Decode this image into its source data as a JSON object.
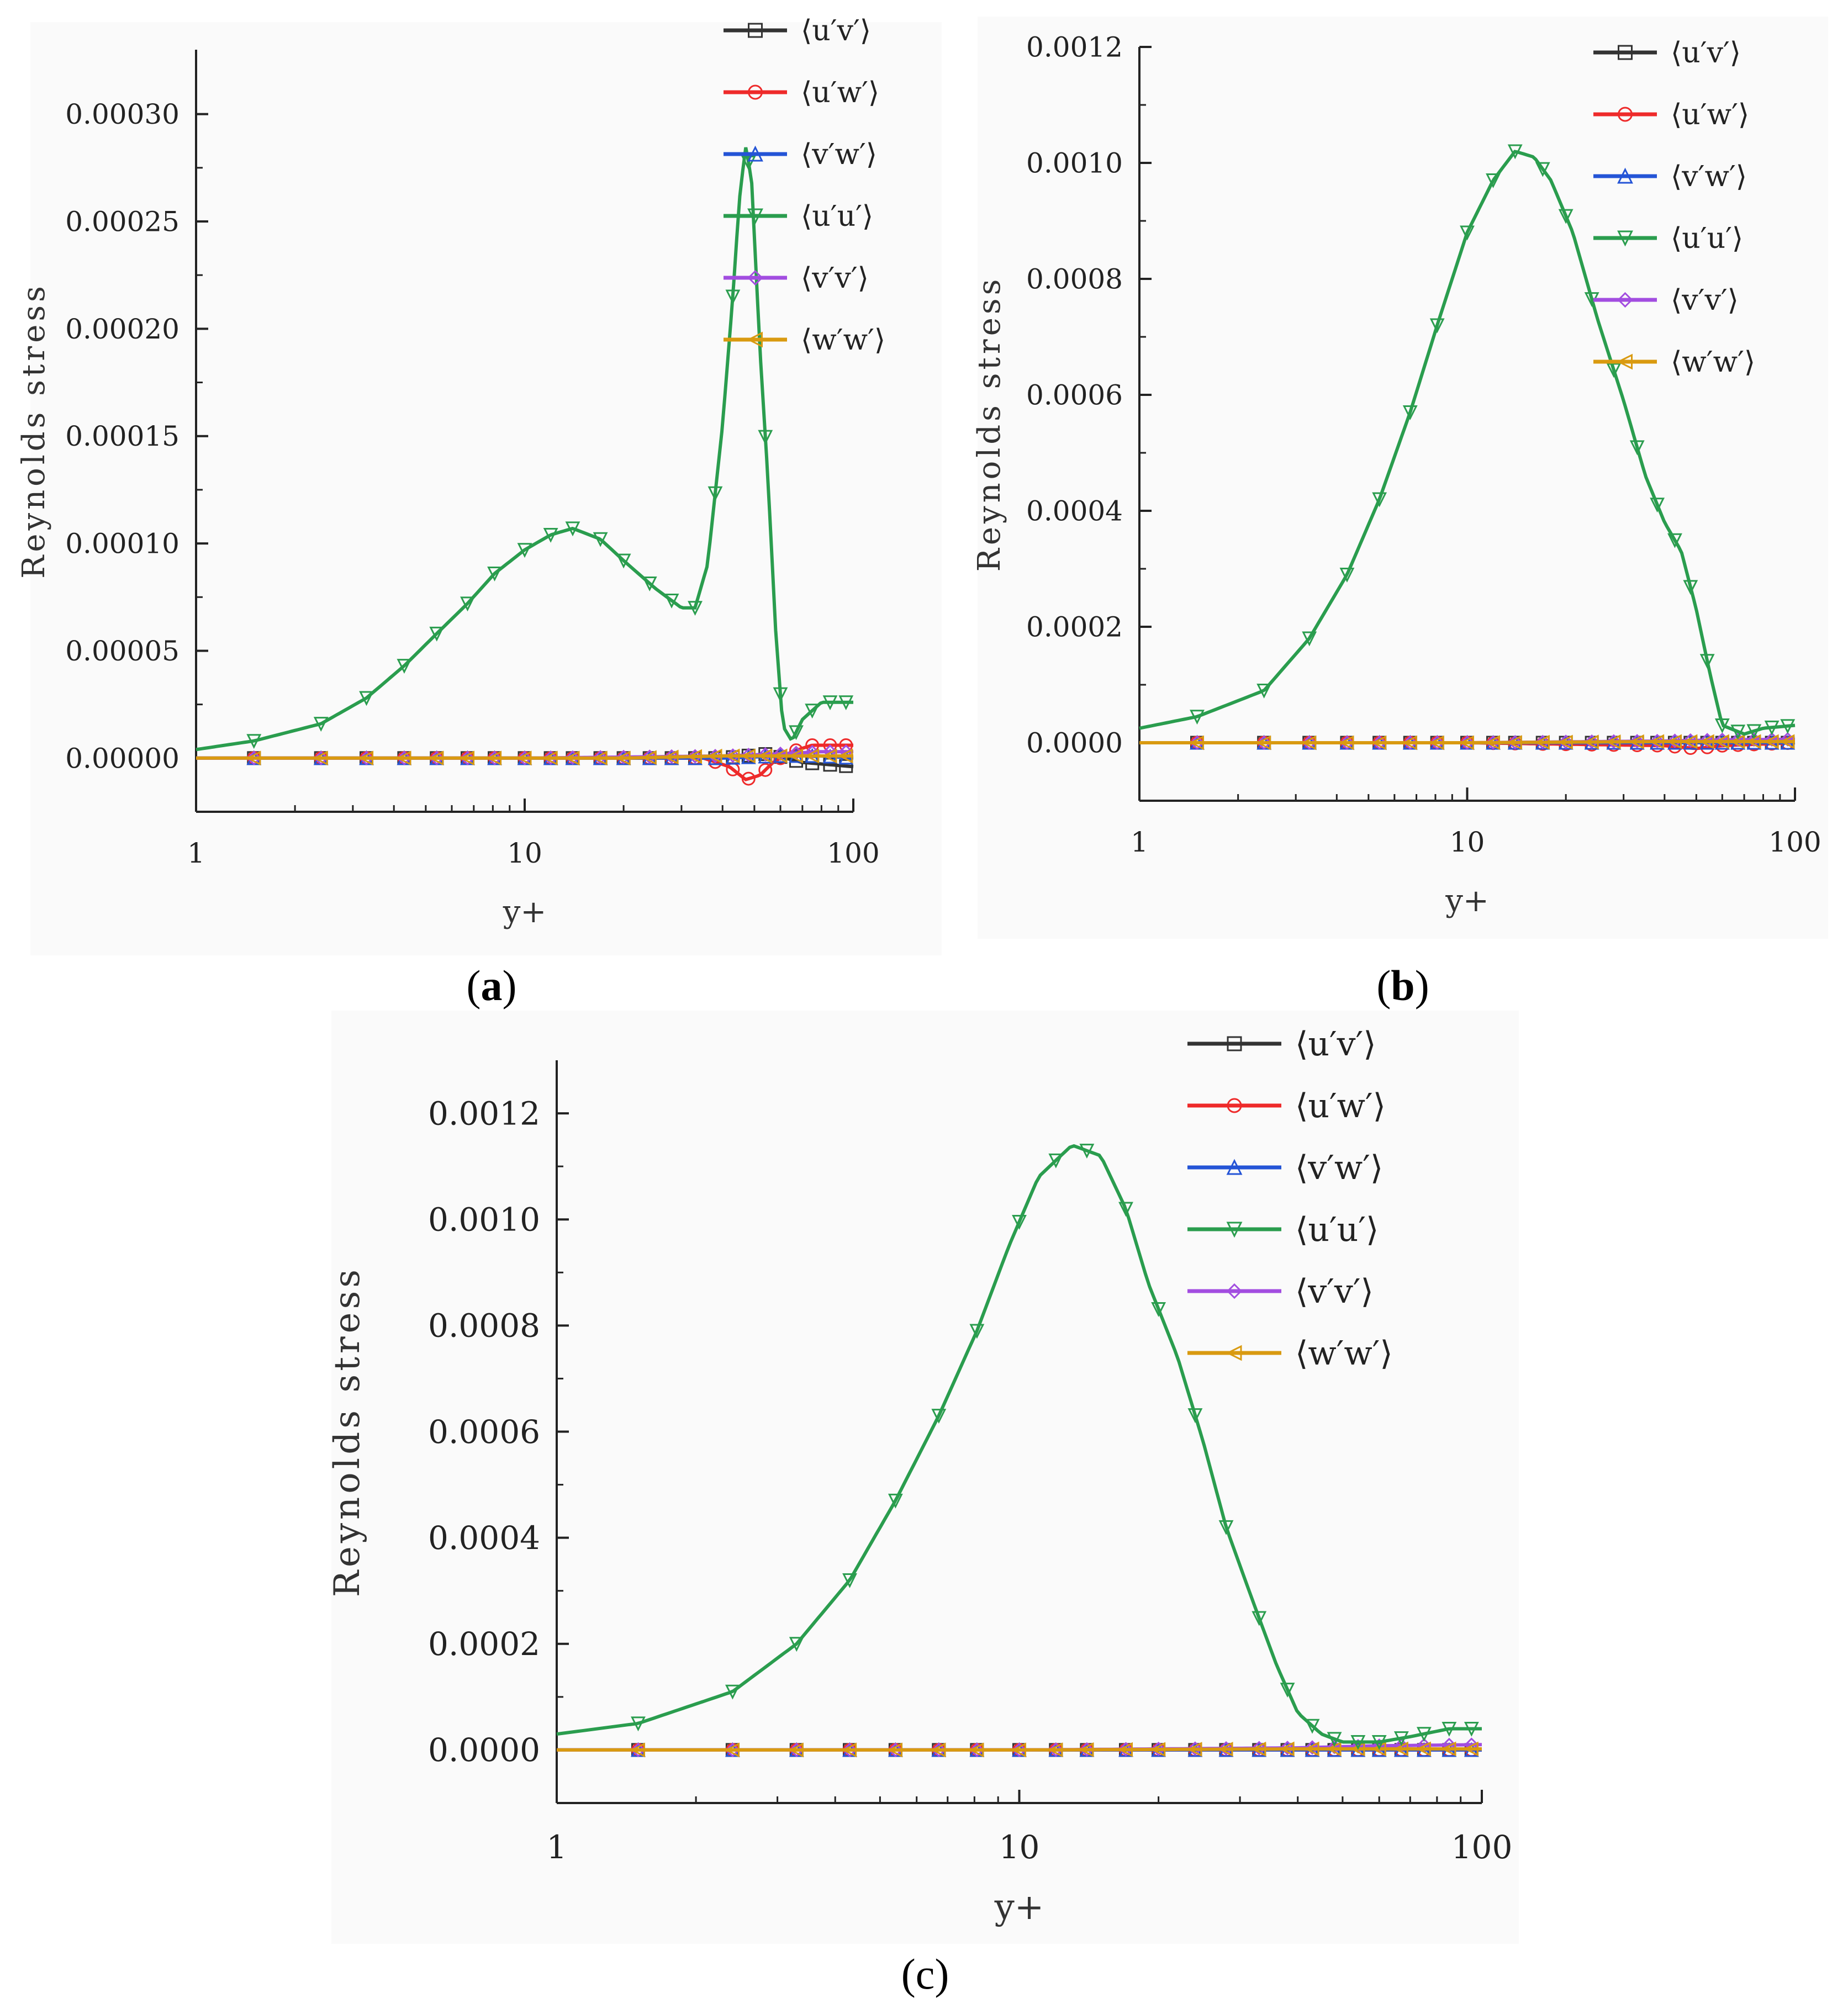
{
  "colors": {
    "uv": "#333333",
    "uw": "#ee2a2a",
    "vw": "#2454d6",
    "uu": "#2a9d4e",
    "vv": "#a24de0",
    "ww": "#d99a10"
  },
  "captions": [
    "a",
    "b",
    "c"
  ],
  "chart_data": [
    {
      "type": "line",
      "panel": "a",
      "xlabel": "y+",
      "ylabel": "Reynolds stress",
      "xscale": "log",
      "xlim": [
        1,
        100
      ],
      "ylim": [
        -2.5e-05,
        0.00033
      ],
      "x_ticks": [
        "1",
        "10",
        "100"
      ],
      "y_ticks": [
        "0.00000",
        "0.00005",
        "0.00010",
        "0.00015",
        "0.00020",
        "0.00025",
        "0.00030"
      ],
      "y_tick_values": [
        0,
        5e-05,
        0.0001,
        0.00015,
        0.0002,
        0.00025,
        0.0003
      ],
      "legend_position": "top-right",
      "series": [
        {
          "key": "uv",
          "name": "⟨u′v′⟩",
          "marker": "square",
          "x": [
            1,
            1.5,
            2.4,
            3.3,
            4.3,
            10,
            30,
            40,
            55,
            70,
            100
          ],
          "values": [
            0,
            0,
            0,
            0,
            0,
            0,
            0,
            0,
            2e-06,
            -2e-06,
            -4e-06
          ]
        },
        {
          "key": "uw",
          "name": "⟨u′w′⟩",
          "marker": "circle",
          "x": [
            1,
            10,
            35,
            42,
            47,
            52,
            57,
            65,
            75,
            100
          ],
          "values": [
            0,
            0,
            0,
            -4e-06,
            -1e-05,
            -8e-06,
            -2e-06,
            3e-06,
            6e-06,
            6e-06
          ]
        },
        {
          "key": "vw",
          "name": "⟨v′w′⟩",
          "marker": "triangle-up",
          "x": [
            1,
            10,
            40,
            60,
            80,
            100
          ],
          "values": [
            0,
            0,
            0,
            1e-06,
            1e-06,
            0
          ]
        },
        {
          "key": "uu",
          "name": "⟨u′u′⟩",
          "marker": "triangle-down",
          "x": [
            1,
            1.5,
            2.4,
            3.3,
            4.3,
            5.4,
            6.7,
            8.1,
            10,
            12,
            14,
            17,
            20,
            25,
            30,
            33,
            36,
            40,
            43,
            45,
            47,
            49,
            52,
            55,
            58,
            61,
            65,
            70,
            80,
            100
          ],
          "values": [
            4e-06,
            8e-06,
            1.6e-05,
            2.8e-05,
            4.3e-05,
            5.8e-05,
            7.2e-05,
            8.6e-05,
            9.7e-05,
            0.000104,
            0.000107,
            0.000102,
            9.2e-05,
            7.9e-05,
            7e-05,
            7e-05,
            9e-05,
            0.000155,
            0.000215,
            0.00026,
            0.000285,
            0.00027,
            0.00019,
            0.00013,
            6e-05,
            1.5e-05,
            8e-06,
            1.8e-05,
            2.6e-05,
            2.6e-05
          ]
        },
        {
          "key": "vv",
          "name": "⟨v′v′⟩",
          "marker": "diamond",
          "x": [
            1,
            10,
            40,
            60,
            80,
            100
          ],
          "values": [
            0,
            0,
            1e-06,
            2e-06,
            3e-06,
            3e-06
          ]
        },
        {
          "key": "ww",
          "name": "⟨w′w′⟩",
          "marker": "triangle-left",
          "x": [
            1,
            1.5,
            2.4,
            3.3,
            4.3,
            5.4,
            6.7,
            8.1,
            10,
            20,
            40,
            60,
            80,
            100
          ],
          "values": [
            0,
            0,
            0,
            0,
            0,
            0,
            0,
            0,
            0,
            0,
            1e-06,
            1e-06,
            1e-06,
            1e-06
          ]
        }
      ]
    },
    {
      "type": "line",
      "panel": "b",
      "xlabel": "y+",
      "ylabel": "Reynolds stress",
      "xscale": "log",
      "xlim": [
        1,
        100
      ],
      "ylim": [
        -0.0001,
        0.0012
      ],
      "x_ticks": [
        "1",
        "10",
        "100"
      ],
      "y_ticks": [
        "0.0000",
        "0.0002",
        "0.0004",
        "0.0006",
        "0.0008",
        "0.0010",
        "0.0012"
      ],
      "y_tick_values": [
        0,
        0.0002,
        0.0004,
        0.0006,
        0.0008,
        0.001,
        0.0012
      ],
      "legend_position": "top-right",
      "series": [
        {
          "key": "uv",
          "name": "⟨u′v′⟩",
          "marker": "square",
          "x": [
            1,
            10,
            40,
            60,
            100
          ],
          "values": [
            0,
            0,
            0,
            0,
            0
          ]
        },
        {
          "key": "uw",
          "name": "⟨u′w′⟩",
          "marker": "circle",
          "x": [
            1,
            10,
            40,
            50,
            60,
            100
          ],
          "values": [
            0,
            0,
            -5e-06,
            -1e-05,
            -5e-06,
            0
          ]
        },
        {
          "key": "vw",
          "name": "⟨v′w′⟩",
          "marker": "triangle-up",
          "x": [
            1,
            10,
            100
          ],
          "values": [
            0,
            0,
            0
          ]
        },
        {
          "key": "uu",
          "name": "⟨u′u′⟩",
          "marker": "triangle-down",
          "x": [
            1,
            1.5,
            2.4,
            3.3,
            4.3,
            5.4,
            6.7,
            8.1,
            10,
            12,
            14,
            16,
            18,
            21,
            25,
            30,
            35,
            40,
            45,
            50,
            55,
            60,
            70,
            80,
            100
          ],
          "values": [
            2.5e-05,
            4.5e-05,
            9e-05,
            0.00018,
            0.00029,
            0.00042,
            0.00057,
            0.00072,
            0.00088,
            0.00097,
            0.00102,
            0.00101,
            0.00097,
            0.00088,
            0.00073,
            0.00059,
            0.00046,
            0.00038,
            0.00033,
            0.00023,
            0.00012,
            3e-05,
            1.5e-05,
            2.5e-05,
            3e-05
          ]
        },
        {
          "key": "vv",
          "name": "⟨v′v′⟩",
          "marker": "diamond",
          "x": [
            1,
            10,
            40,
            60,
            100
          ],
          "values": [
            0,
            0,
            3e-06,
            5e-06,
            6e-06
          ]
        },
        {
          "key": "ww",
          "name": "⟨w′w′⟩",
          "marker": "triangle-left",
          "x": [
            1,
            10,
            40,
            100
          ],
          "values": [
            0,
            0,
            2e-06,
            2e-06
          ]
        }
      ]
    },
    {
      "type": "line",
      "panel": "c",
      "xlabel": "y+",
      "ylabel": "Reynolds stress",
      "xscale": "log",
      "xlim": [
        1,
        100
      ],
      "ylim": [
        -0.0001,
        0.0013
      ],
      "x_ticks": [
        "1",
        "10",
        "100"
      ],
      "y_ticks": [
        "0.0000",
        "0.0002",
        "0.0004",
        "0.0006",
        "0.0008",
        "0.0010",
        "0.0012"
      ],
      "y_tick_values": [
        0,
        0.0002,
        0.0004,
        0.0006,
        0.0008,
        0.001,
        0.0012
      ],
      "legend_position": "top-right",
      "series": [
        {
          "key": "uv",
          "name": "⟨u′v′⟩",
          "marker": "square",
          "x": [
            1,
            10,
            40,
            60,
            100
          ],
          "values": [
            0,
            0,
            0,
            0,
            0
          ]
        },
        {
          "key": "uw",
          "name": "⟨u′w′⟩",
          "marker": "circle",
          "x": [
            1,
            10,
            40,
            60,
            100
          ],
          "values": [
            0,
            0,
            0,
            0,
            0
          ]
        },
        {
          "key": "vw",
          "name": "⟨v′w′⟩",
          "marker": "triangle-up",
          "x": [
            1,
            10,
            100
          ],
          "values": [
            0,
            0,
            0
          ]
        },
        {
          "key": "uu",
          "name": "⟨u′u′⟩",
          "marker": "triangle-down",
          "x": [
            1,
            1.5,
            2.4,
            3.3,
            4.3,
            5.4,
            6.7,
            8.1,
            9.5,
            11,
            13,
            15,
            17,
            19,
            22,
            25,
            28,
            32,
            36,
            40,
            45,
            50,
            60,
            70,
            85,
            100
          ],
          "values": [
            3e-05,
            5e-05,
            0.00011,
            0.0002,
            0.00032,
            0.00047,
            0.00063,
            0.00079,
            0.00095,
            0.00108,
            0.00114,
            0.00112,
            0.00102,
            0.00088,
            0.00074,
            0.00058,
            0.00042,
            0.00028,
            0.00016,
            7e-05,
            3e-05,
            1.5e-05,
            1.5e-05,
            2.5e-05,
            4e-05,
            4e-05
          ]
        },
        {
          "key": "vv",
          "name": "⟨v′v′⟩",
          "marker": "diamond",
          "x": [
            1,
            10,
            40,
            60,
            100
          ],
          "values": [
            0,
            0,
            4e-06,
            8e-06,
            1e-05
          ]
        },
        {
          "key": "ww",
          "name": "⟨w′w′⟩",
          "marker": "triangle-left",
          "x": [
            1,
            10,
            40,
            100
          ],
          "values": [
            0,
            0,
            2e-06,
            2e-06
          ]
        }
      ]
    }
  ]
}
